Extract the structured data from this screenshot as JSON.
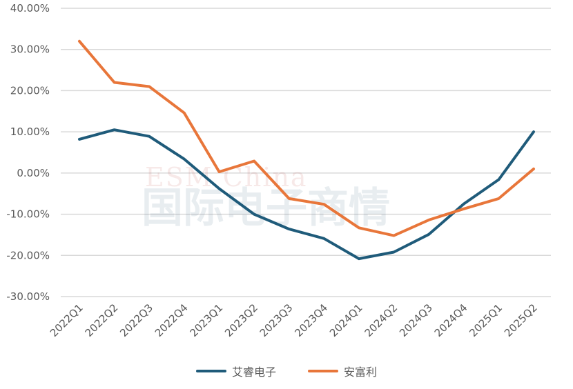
{
  "chart_data": {
    "type": "line",
    "categories": [
      "2022Q1",
      "2022Q2",
      "2022Q3",
      "2022Q4",
      "2023Q1",
      "2023Q2",
      "2023Q3",
      "2023Q4",
      "2024Q1",
      "2024Q2",
      "2024Q3",
      "2024Q4",
      "2025Q1",
      "2025Q2"
    ],
    "series": [
      {
        "name": "艾睿电子",
        "color": "#1f5b7a",
        "values": [
          8.2,
          10.5,
          8.9,
          3.4,
          -3.8,
          -10.0,
          -13.6,
          -15.9,
          -20.8,
          -19.2,
          -14.9,
          -7.5,
          -1.6,
          10.0
        ]
      },
      {
        "name": "安富利",
        "color": "#e8763a",
        "values": [
          32.0,
          22.0,
          21.0,
          14.6,
          0.3,
          2.9,
          -6.2,
          -7.6,
          -13.3,
          -15.2,
          -11.4,
          -8.7,
          -6.2,
          1.0
        ]
      }
    ],
    "ylim": [
      -30,
      40
    ],
    "yticks": [
      "40.00%",
      "30.00%",
      "20.00%",
      "10.00%",
      "0.00%",
      "-10.00%",
      "-20.00%",
      "-30.00%"
    ],
    "ytick_values": [
      40,
      30,
      20,
      10,
      0,
      -10,
      -20,
      -30
    ],
    "grid": true,
    "legend_position": "bottom",
    "watermark": "ESM China 国际电子商情"
  }
}
